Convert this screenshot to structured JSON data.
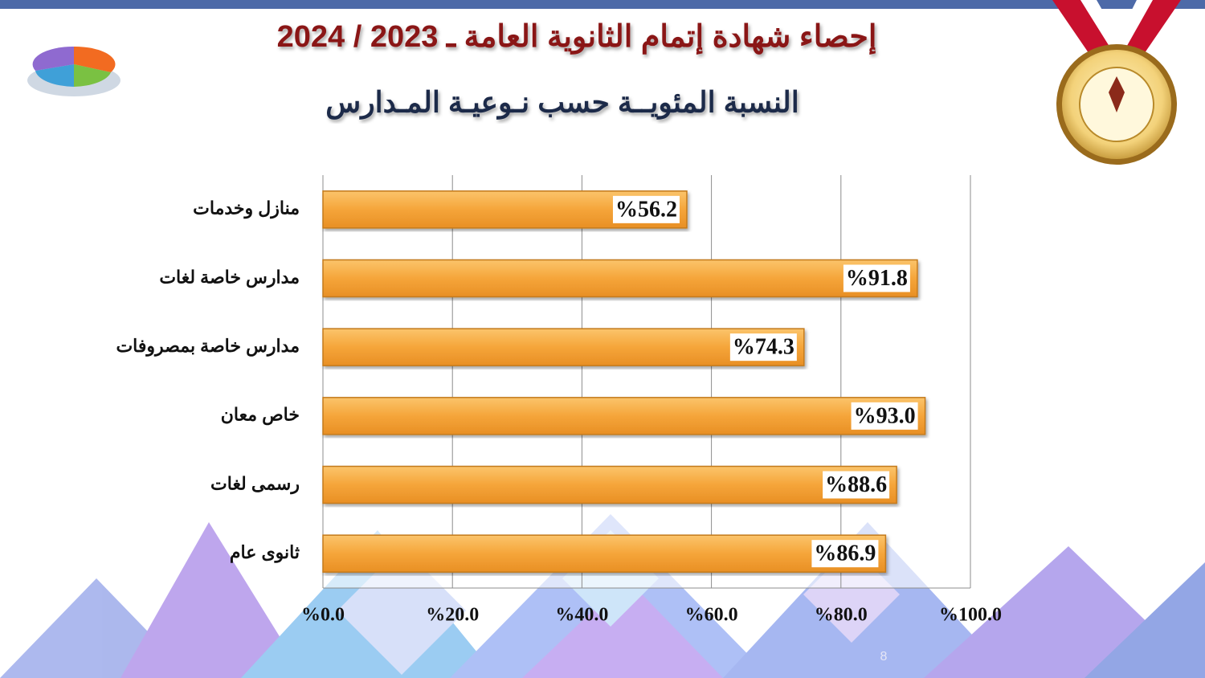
{
  "chart_data": {
    "type": "barh",
    "title": "إحصاء شهادة إتمام الثانوية العامة ـ 2023 / 2024",
    "subtitle": "النسبة المئويــة حسب نـوعيـة المـدارس",
    "categories": [
      "منازل وخدمات",
      "مدارس خاصة لغات",
      "مدارس خاصة بمصروفات",
      "خاص معان",
      "رسمى لغات",
      "ثانوى عام"
    ],
    "values": [
      56.2,
      91.8,
      74.3,
      93.0,
      88.6,
      86.9
    ],
    "value_labels": [
      "%56.2",
      "%91.8",
      "%74.3",
      "%93.0",
      "%88.6",
      "%86.9"
    ],
    "color": "#f5a53a",
    "xlim": [
      0,
      100
    ],
    "xticks": [
      {
        "value": 0,
        "label": "%0.0"
      },
      {
        "value": 20,
        "label": "%20.0"
      },
      {
        "value": 40,
        "label": "%40.0"
      },
      {
        "value": 60,
        "label": "%60.0"
      },
      {
        "value": 80,
        "label": "%80.0"
      },
      {
        "value": 100,
        "label": "%100.0"
      }
    ],
    "grid": true
  },
  "page_number": "8"
}
